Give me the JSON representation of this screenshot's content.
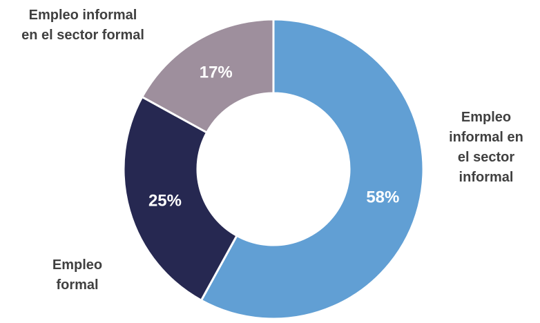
{
  "chart_data": {
    "type": "pie",
    "donut": true,
    "title": "",
    "legend": "none",
    "categories": [
      "Empleo informal en el sector informal",
      "Empleo formal",
      "Empleo informal en el sector formal"
    ],
    "values": [
      58,
      25,
      17
    ],
    "value_labels": [
      "58%",
      "25%",
      "17%"
    ],
    "colors": [
      "#619FD4",
      "#262851",
      "#9E8F9D"
    ],
    "category_label_lines": [
      [
        "Empleo",
        "informal en",
        "el sector",
        "informal"
      ],
      [
        "Empleo",
        "formal"
      ],
      [
        "Empleo informal",
        "en el sector formal"
      ]
    ]
  }
}
